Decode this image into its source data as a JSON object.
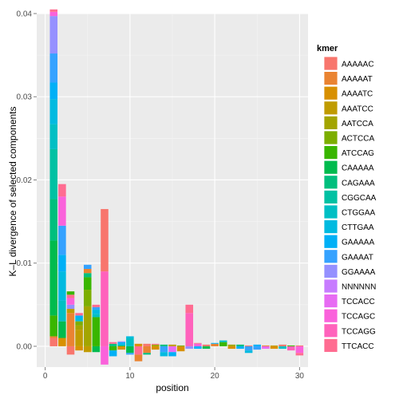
{
  "chart_data": {
    "type": "bar",
    "stacked": true,
    "title": "",
    "xlabel": "position",
    "ylabel": "K–L divergence of selected components",
    "xlim": [
      -1,
      31
    ],
    "ylim": [
      -0.0025,
      0.04
    ],
    "xticks": [
      0,
      10,
      20,
      30
    ],
    "yticks": [
      0.0,
      0.01,
      0.02,
      0.03,
      0.04
    ],
    "ytick_labels": [
      "0.00",
      "0.01",
      "0.02",
      "0.03",
      "0.04"
    ],
    "grid": true,
    "legend_position": "right",
    "legend_title": "kmer",
    "series": [
      {
        "name": "AAAAAC",
        "color": "#F8766D"
      },
      {
        "name": "AAAAAT",
        "color": "#EA8331"
      },
      {
        "name": "AAAATC",
        "color": "#D89000"
      },
      {
        "name": "AAATCC",
        "color": "#C09B00"
      },
      {
        "name": "AATCCA",
        "color": "#A3A500"
      },
      {
        "name": "ACTCCA",
        "color": "#7CAE00"
      },
      {
        "name": "ATCCAG",
        "color": "#39B600"
      },
      {
        "name": "CAAAAA",
        "color": "#00BB4E"
      },
      {
        "name": "CAGAAA",
        "color": "#00BF7D"
      },
      {
        "name": "CGGCAA",
        "color": "#00C1A3"
      },
      {
        "name": "CTGGAA",
        "color": "#00BFC4"
      },
      {
        "name": "CTTGAA",
        "color": "#00BAE0"
      },
      {
        "name": "GAAAAA",
        "color": "#00B0F6"
      },
      {
        "name": "GAAAAT",
        "color": "#35A2FF"
      },
      {
        "name": "GGAAAA",
        "color": "#9590FF"
      },
      {
        "name": "NNNNNN",
        "color": "#C77CFF"
      },
      {
        "name": "TCCACC",
        "color": "#E76BF3"
      },
      {
        "name": "TCCAGC",
        "color": "#FA62DB"
      },
      {
        "name": "TCCAGG",
        "color": "#FF62BC"
      },
      {
        "name": "TTCACC",
        "color": "#FF6C91"
      }
    ],
    "bars": [
      {
        "x": 1,
        "segments": [
          [
            0,
            0.001
          ],
          [
            1,
            0.0002
          ],
          [
            6,
            0.0025
          ],
          [
            7,
            0.009
          ],
          [
            8,
            0.005
          ],
          [
            9,
            0.006
          ],
          [
            10,
            0.003
          ],
          [
            11,
            0.003
          ],
          [
            12,
            0.002
          ],
          [
            13,
            0.0035
          ],
          [
            14,
            0.0045
          ],
          [
            17,
            0.0005
          ],
          [
            19,
            0.0003
          ]
        ]
      },
      {
        "x": 2,
        "segments": [
          [
            2,
            0.001
          ],
          [
            7,
            0.002
          ],
          [
            10,
            0.0025
          ],
          [
            11,
            0.0035
          ],
          [
            12,
            0.002
          ],
          [
            13,
            0.0035
          ],
          [
            17,
            0.0035
          ],
          [
            19,
            0.0015
          ]
        ]
      },
      {
        "x": 3,
        "segments": [
          [
            0,
            -0.001
          ],
          [
            1,
            0.004
          ],
          [
            3,
            0.0005
          ],
          [
            14,
            0.0005
          ],
          [
            17,
            0.0008
          ],
          [
            19,
            0.0004
          ],
          [
            6,
            0.0004
          ]
        ]
      },
      {
        "x": 4,
        "segments": [
          [
            2,
            -0.0005
          ],
          [
            3,
            0.002
          ],
          [
            4,
            0.0005
          ],
          [
            5,
            0.0005
          ],
          [
            11,
            0.0004
          ],
          [
            12,
            0.0003
          ],
          [
            19,
            0.0003
          ]
        ]
      },
      {
        "x": 5,
        "segments": [
          [
            3,
            -0.0007
          ],
          [
            4,
            0.0048
          ],
          [
            5,
            0.002
          ],
          [
            6,
            0.0015
          ],
          [
            8,
            0.0005
          ],
          [
            1,
            0.0005
          ],
          [
            13,
            0.0005
          ]
        ]
      },
      {
        "x": 6,
        "segments": [
          [
            7,
            -0.0007
          ],
          [
            6,
            0.0035
          ],
          [
            10,
            0.0004
          ],
          [
            11,
            0.0005
          ],
          [
            13,
            0.0003
          ],
          [
            19,
            0.0003
          ]
        ]
      },
      {
        "x": 7,
        "segments": [
          [
            17,
            -0.0022
          ],
          [
            18,
            0.009
          ],
          [
            0,
            0.0075
          ]
        ]
      },
      {
        "x": 8,
        "segments": [
          [
            6,
            -0.0005
          ],
          [
            12,
            -0.0007
          ],
          [
            8,
            0.0003
          ],
          [
            19,
            0.0002
          ]
        ]
      },
      {
        "x": 9,
        "segments": [
          [
            2,
            -0.0004
          ],
          [
            7,
            0.0001
          ],
          [
            11,
            0.0002
          ],
          [
            12,
            0.0002
          ],
          [
            14,
            0.0001
          ]
        ]
      },
      {
        "x": 10,
        "segments": [
          [
            7,
            -0.0008
          ],
          [
            13,
            -0.0002
          ],
          [
            10,
            0.001
          ],
          [
            11,
            0.0002
          ]
        ]
      },
      {
        "x": 11,
        "segments": [
          [
            19,
            -0.001
          ],
          [
            1,
            -0.0008
          ],
          [
            2,
            0.0003
          ]
        ]
      },
      {
        "x": 12,
        "segments": [
          [
            1,
            -0.0008
          ],
          [
            8,
            -0.0002
          ],
          [
            0,
            0.0003
          ]
        ]
      },
      {
        "x": 13,
        "segments": [
          [
            2,
            -0.0004
          ],
          [
            4,
            0.0002
          ],
          [
            19,
            0.0001
          ]
        ]
      },
      {
        "x": 14,
        "segments": [
          [
            13,
            -0.0007
          ],
          [
            11,
            -0.0005
          ],
          [
            8,
            0.0002
          ]
        ]
      },
      {
        "x": 15,
        "segments": [
          [
            16,
            -0.0007
          ],
          [
            12,
            -0.0005
          ],
          [
            3,
            0.0002
          ]
        ]
      },
      {
        "x": 16,
        "segments": [
          [
            2,
            -0.0006
          ],
          [
            5,
            0.0001
          ]
        ]
      },
      {
        "x": 17,
        "segments": [
          [
            14,
            -0.0003
          ],
          [
            18,
            0.004
          ],
          [
            19,
            0.001
          ]
        ]
      },
      {
        "x": 18,
        "segments": [
          [
            12,
            -0.0003
          ],
          [
            17,
            0.0003
          ],
          [
            19,
            0.0001
          ]
        ]
      },
      {
        "x": 19,
        "segments": [
          [
            7,
            -0.0003
          ],
          [
            0,
            0.0002
          ]
        ]
      },
      {
        "x": 20,
        "segments": [
          [
            1,
            0.0003
          ],
          [
            12,
            0.0001
          ]
        ]
      },
      {
        "x": 21,
        "segments": [
          [
            6,
            0.0005
          ],
          [
            10,
            0.0002
          ]
        ]
      },
      {
        "x": 22,
        "segments": [
          [
            2,
            -0.0003
          ],
          [
            4,
            0.0002
          ]
        ]
      },
      {
        "x": 23,
        "segments": [
          [
            12,
            -0.0003
          ],
          [
            8,
            0.0002
          ]
        ]
      },
      {
        "x": 24,
        "segments": [
          [
            13,
            -0.0005
          ],
          [
            11,
            -0.0003
          ],
          [
            0,
            0.0001
          ]
        ]
      },
      {
        "x": 25,
        "segments": [
          [
            13,
            -0.0004
          ],
          [
            12,
            0.0002
          ]
        ]
      },
      {
        "x": 26,
        "segments": [
          [
            16,
            -0.0003
          ],
          [
            1,
            0.0001
          ]
        ]
      },
      {
        "x": 27,
        "segments": [
          [
            2,
            -0.0003
          ],
          [
            3,
            0.0001
          ]
        ]
      },
      {
        "x": 28,
        "segments": [
          [
            10,
            -0.0003
          ],
          [
            0,
            0.0002
          ]
        ]
      },
      {
        "x": 29,
        "segments": [
          [
            18,
            -0.0005
          ],
          [
            6,
            0.0001
          ]
        ]
      },
      {
        "x": 30,
        "segments": [
          [
            17,
            -0.0008
          ],
          [
            19,
            -0.0003
          ],
          [
            0,
            0.0001
          ]
        ]
      }
    ]
  }
}
